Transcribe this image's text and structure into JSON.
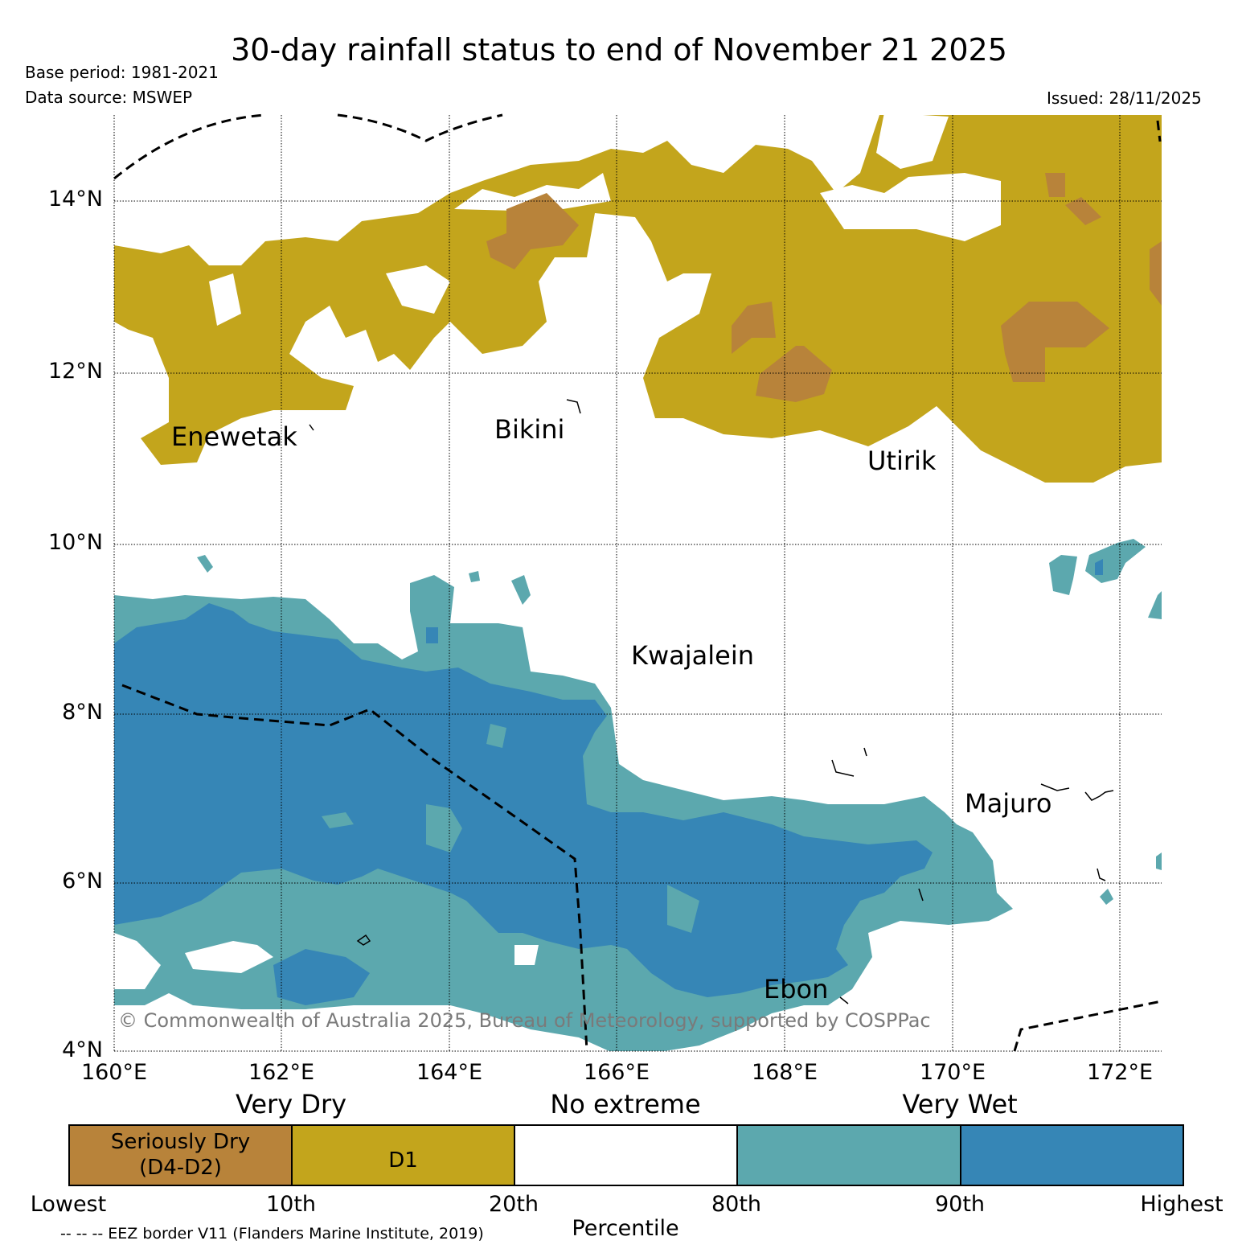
{
  "title": "30-day rainfall status to end of November 21 2025",
  "base_period": "Base period: 1981-2021",
  "data_source": "Data source: MSWEP",
  "issued": "Issued: 28/11/2025",
  "copyright": "© Commonwealth of Australia 2025, Bureau of Meteorology, supported by COSPPac",
  "eez_note": "-- -- -- EEZ border V11 (Flanders Marine Institute, 2019)",
  "axes": {
    "lon_labels": [
      "160°E",
      "162°E",
      "164°E",
      "166°E",
      "168°E",
      "170°E",
      "172°E"
    ],
    "lat_labels": [
      "14°N",
      "12°N",
      "10°N",
      "8°N",
      "6°N",
      "4°N"
    ]
  },
  "places": [
    {
      "name": "Enewetak"
    },
    {
      "name": "Bikini"
    },
    {
      "name": "Utirik"
    },
    {
      "name": "Kwajalein"
    },
    {
      "name": "Majuro"
    },
    {
      "name": "Ebon"
    }
  ],
  "legend": {
    "categories": [
      "Very Dry",
      "No extreme",
      "Very Wet"
    ],
    "boxes": [
      {
        "label": "Seriously Dry\n(D4-D2)",
        "color": "#b8833a"
      },
      {
        "label": "D1",
        "color": "#c3a51c"
      },
      {
        "label": "",
        "color": "#ffffff"
      },
      {
        "label": "",
        "color": "#5ca8ae"
      },
      {
        "label": "",
        "color": "#3686b6"
      }
    ],
    "percentiles": [
      "Lowest",
      "10th",
      "20th",
      "80th",
      "90th",
      "Highest"
    ],
    "axis_title": "Percentile"
  },
  "colors": {
    "seriously_dry": "#b8833a",
    "d1": "#c3a51c",
    "very_wet_80": "#5ca8ae",
    "very_wet_90": "#3686b6"
  }
}
